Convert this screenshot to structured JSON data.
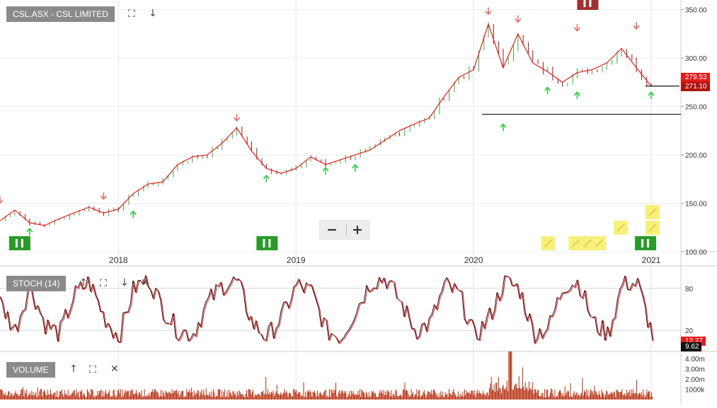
{
  "instrument_label": "CSL.ASX - CSL LIMITED",
  "stoch_label": "STOCH (14)",
  "volume_label": "VOLUME",
  "current_price": "271.10",
  "moving_avg_price": "279.53",
  "stoch_k": "12.27",
  "stoch_d": "9.62",
  "colors": {
    "up_candle": "#3aa83a",
    "down_candle": "#8b1a1a",
    "moving_average": "#e02020",
    "stoch_k": "#111111",
    "stoch_d": "#e02020",
    "volume": "#b52a0b",
    "up_arrow": "#2ecc40",
    "down_arrow": "#e07070",
    "tag_grey": "#8a8a8a",
    "price_tag": "#c0140f",
    "support_line": "#111111",
    "note_marker": "#f7f07a",
    "signal_green": "#2a9a2a",
    "signal_red": "#a33030"
  },
  "chart_data": [
    {
      "type": "line",
      "subtype": "candlestick_with_moving_average",
      "title": "CSL.ASX - CSL LIMITED",
      "x_ticks": [
        "2018",
        "2019",
        "2020",
        "2021"
      ],
      "y_ticks": [
        "100.00",
        "150.00",
        "200.00",
        "250.00",
        "300.00",
        "350.00"
      ],
      "ylim": [
        100,
        360
      ],
      "xlim": [
        "2017-05",
        "2021-01"
      ],
      "grid": true,
      "series": [
        {
          "values": [
            [
              "2017-05",
              132
            ],
            [
              "2017-06",
              143
            ],
            [
              "2017-07",
              130
            ],
            [
              "2017-08",
              127
            ],
            [
              "2017-09",
              134
            ],
            [
              "2017-10",
              140
            ],
            [
              "2017-11",
              146
            ],
            [
              "2017-12",
              140
            ],
            [
              "2018-01",
              144
            ],
            [
              "2018-02",
              160
            ],
            [
              "2018-03",
              170
            ],
            [
              "2018-04",
              172
            ],
            [
              "2018-05",
              190
            ],
            [
              "2018-06",
              198
            ],
            [
              "2018-07",
              200
            ],
            [
              "2018-08",
              212
            ],
            [
              "2018-09",
              228
            ],
            [
              "2018-10",
              204
            ],
            [
              "2018-11",
              186
            ],
            [
              "2018-12",
              181
            ],
            [
              "2019-01",
              186
            ],
            [
              "2019-02",
              198
            ],
            [
              "2019-03",
              190
            ],
            [
              "2019-04",
              195
            ],
            [
              "2019-05",
              200
            ],
            [
              "2019-06",
              205
            ],
            [
              "2019-07",
              215
            ],
            [
              "2019-08",
              225
            ],
            [
              "2019-09",
              232
            ],
            [
              "2019-10",
              238
            ],
            [
              "2019-11",
              260
            ],
            [
              "2019-12",
              280
            ],
            [
              "2020-01",
              288
            ],
            [
              "2020-02",
              335
            ],
            [
              "2020-03",
              290
            ],
            [
              "2020-04",
              325
            ],
            [
              "2020-05",
              295
            ],
            [
              "2020-06",
              286
            ],
            [
              "2020-07",
              275
            ],
            [
              "2020-08",
              285
            ],
            [
              "2020-09",
              288
            ],
            [
              "2020-10",
              295
            ],
            [
              "2020-11",
              310
            ],
            [
              "2020-12",
              290
            ],
            [
              "2021-01",
              271.1
            ]
          ]
        }
      ],
      "markers": {
        "up_arrows": [
          [
            "2017-07",
            124
          ],
          [
            "2018-02",
            142
          ],
          [
            "2018-11",
            179
          ],
          [
            "2019-03",
            187
          ],
          [
            "2019-05",
            190
          ],
          [
            "2020-03",
            232
          ],
          [
            "2020-06",
            270
          ],
          [
            "2020-08",
            265
          ],
          [
            "2021-01",
            265
          ]
        ],
        "down_arrows": [
          [
            "2017-05",
            150
          ],
          [
            "2017-12",
            154
          ],
          [
            "2018-09",
            235
          ],
          [
            "2020-02",
            345
          ],
          [
            "2020-04",
            337
          ],
          [
            "2020-08",
            328
          ],
          [
            "2020-12",
            330
          ]
        ]
      },
      "support_levels": [
        271.1,
        242
      ]
    },
    {
      "type": "line",
      "title": "STOCH (14)",
      "y_ticks": [
        "80",
        "20"
      ],
      "ylim": [
        0,
        100
      ],
      "series": [
        {
          "values": [
            60,
            20,
            85,
            30,
            15,
            70,
            90,
            40,
            10,
            80,
            95,
            50,
            20,
            15,
            60,
            85,
            90,
            30,
            10,
            40,
            85,
            75,
            20,
            10,
            50,
            90,
            95,
            60,
            20,
            30,
            85,
            70,
            10,
            40,
            90,
            80,
            15,
            25,
            85,
            90,
            30,
            15,
            90,
            85,
            12
          ]
        }
      ],
      "last_values": [
        12.27,
        9.62
      ]
    },
    {
      "type": "bar",
      "title": "VOLUME",
      "y_ticks": [
        "4.00m",
        "3.00m",
        "2.00m",
        "1000k"
      ],
      "ylim": [
        0,
        4500000
      ],
      "peak_volume": 4800000
    }
  ]
}
